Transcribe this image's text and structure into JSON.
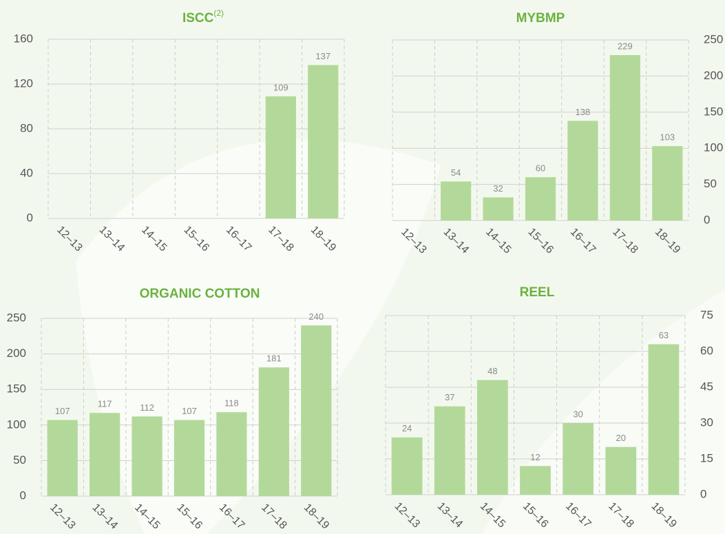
{
  "chart_data": [
    {
      "type": "bar",
      "title": "ISCC",
      "title_note": "(2)",
      "categories": [
        "12–13",
        "13–14",
        "14–15",
        "15–16",
        "16–17",
        "17–18",
        "18–19"
      ],
      "values": [
        null,
        null,
        null,
        null,
        null,
        109,
        137
      ],
      "color": "#b3d99a",
      "ylim": [
        0,
        160
      ],
      "yticks": [
        0,
        40,
        80,
        120,
        160
      ],
      "yaxis_side": "left",
      "grid": true
    },
    {
      "type": "bar",
      "title": "MYBMP",
      "categories": [
        "12–13",
        "13–14",
        "14–15",
        "15–16",
        "16–17",
        "17–18",
        "18–19"
      ],
      "values": [
        null,
        54,
        32,
        60,
        138,
        229,
        103
      ],
      "color": "#b3d99a",
      "ylim": [
        0,
        250
      ],
      "yticks": [
        0,
        50,
        100,
        150,
        200,
        250
      ],
      "yaxis_side": "right",
      "grid": true
    },
    {
      "type": "bar",
      "title": "ORGANIC COTTON",
      "categories": [
        "12–13",
        "13–14",
        "14–15",
        "15–16",
        "16–17",
        "17–18",
        "18–19"
      ],
      "values": [
        107,
        117,
        112,
        107,
        118,
        181,
        240
      ],
      "color": "#b3d99a",
      "ylim": [
        0,
        250
      ],
      "yticks": [
        0,
        50,
        100,
        150,
        200,
        250
      ],
      "yaxis_side": "left",
      "grid": true
    },
    {
      "type": "bar",
      "title": "REEL",
      "categories": [
        "12–13",
        "13–14",
        "14–15",
        "15–16",
        "16–17",
        "17–18",
        "18–19"
      ],
      "values": [
        24,
        37,
        48,
        12,
        30,
        20,
        63
      ],
      "color": "#b3d99a",
      "ylim": [
        0,
        75
      ],
      "yticks": [
        0,
        15,
        30,
        45,
        60,
        75
      ],
      "yaxis_side": "right",
      "grid": true
    }
  ]
}
